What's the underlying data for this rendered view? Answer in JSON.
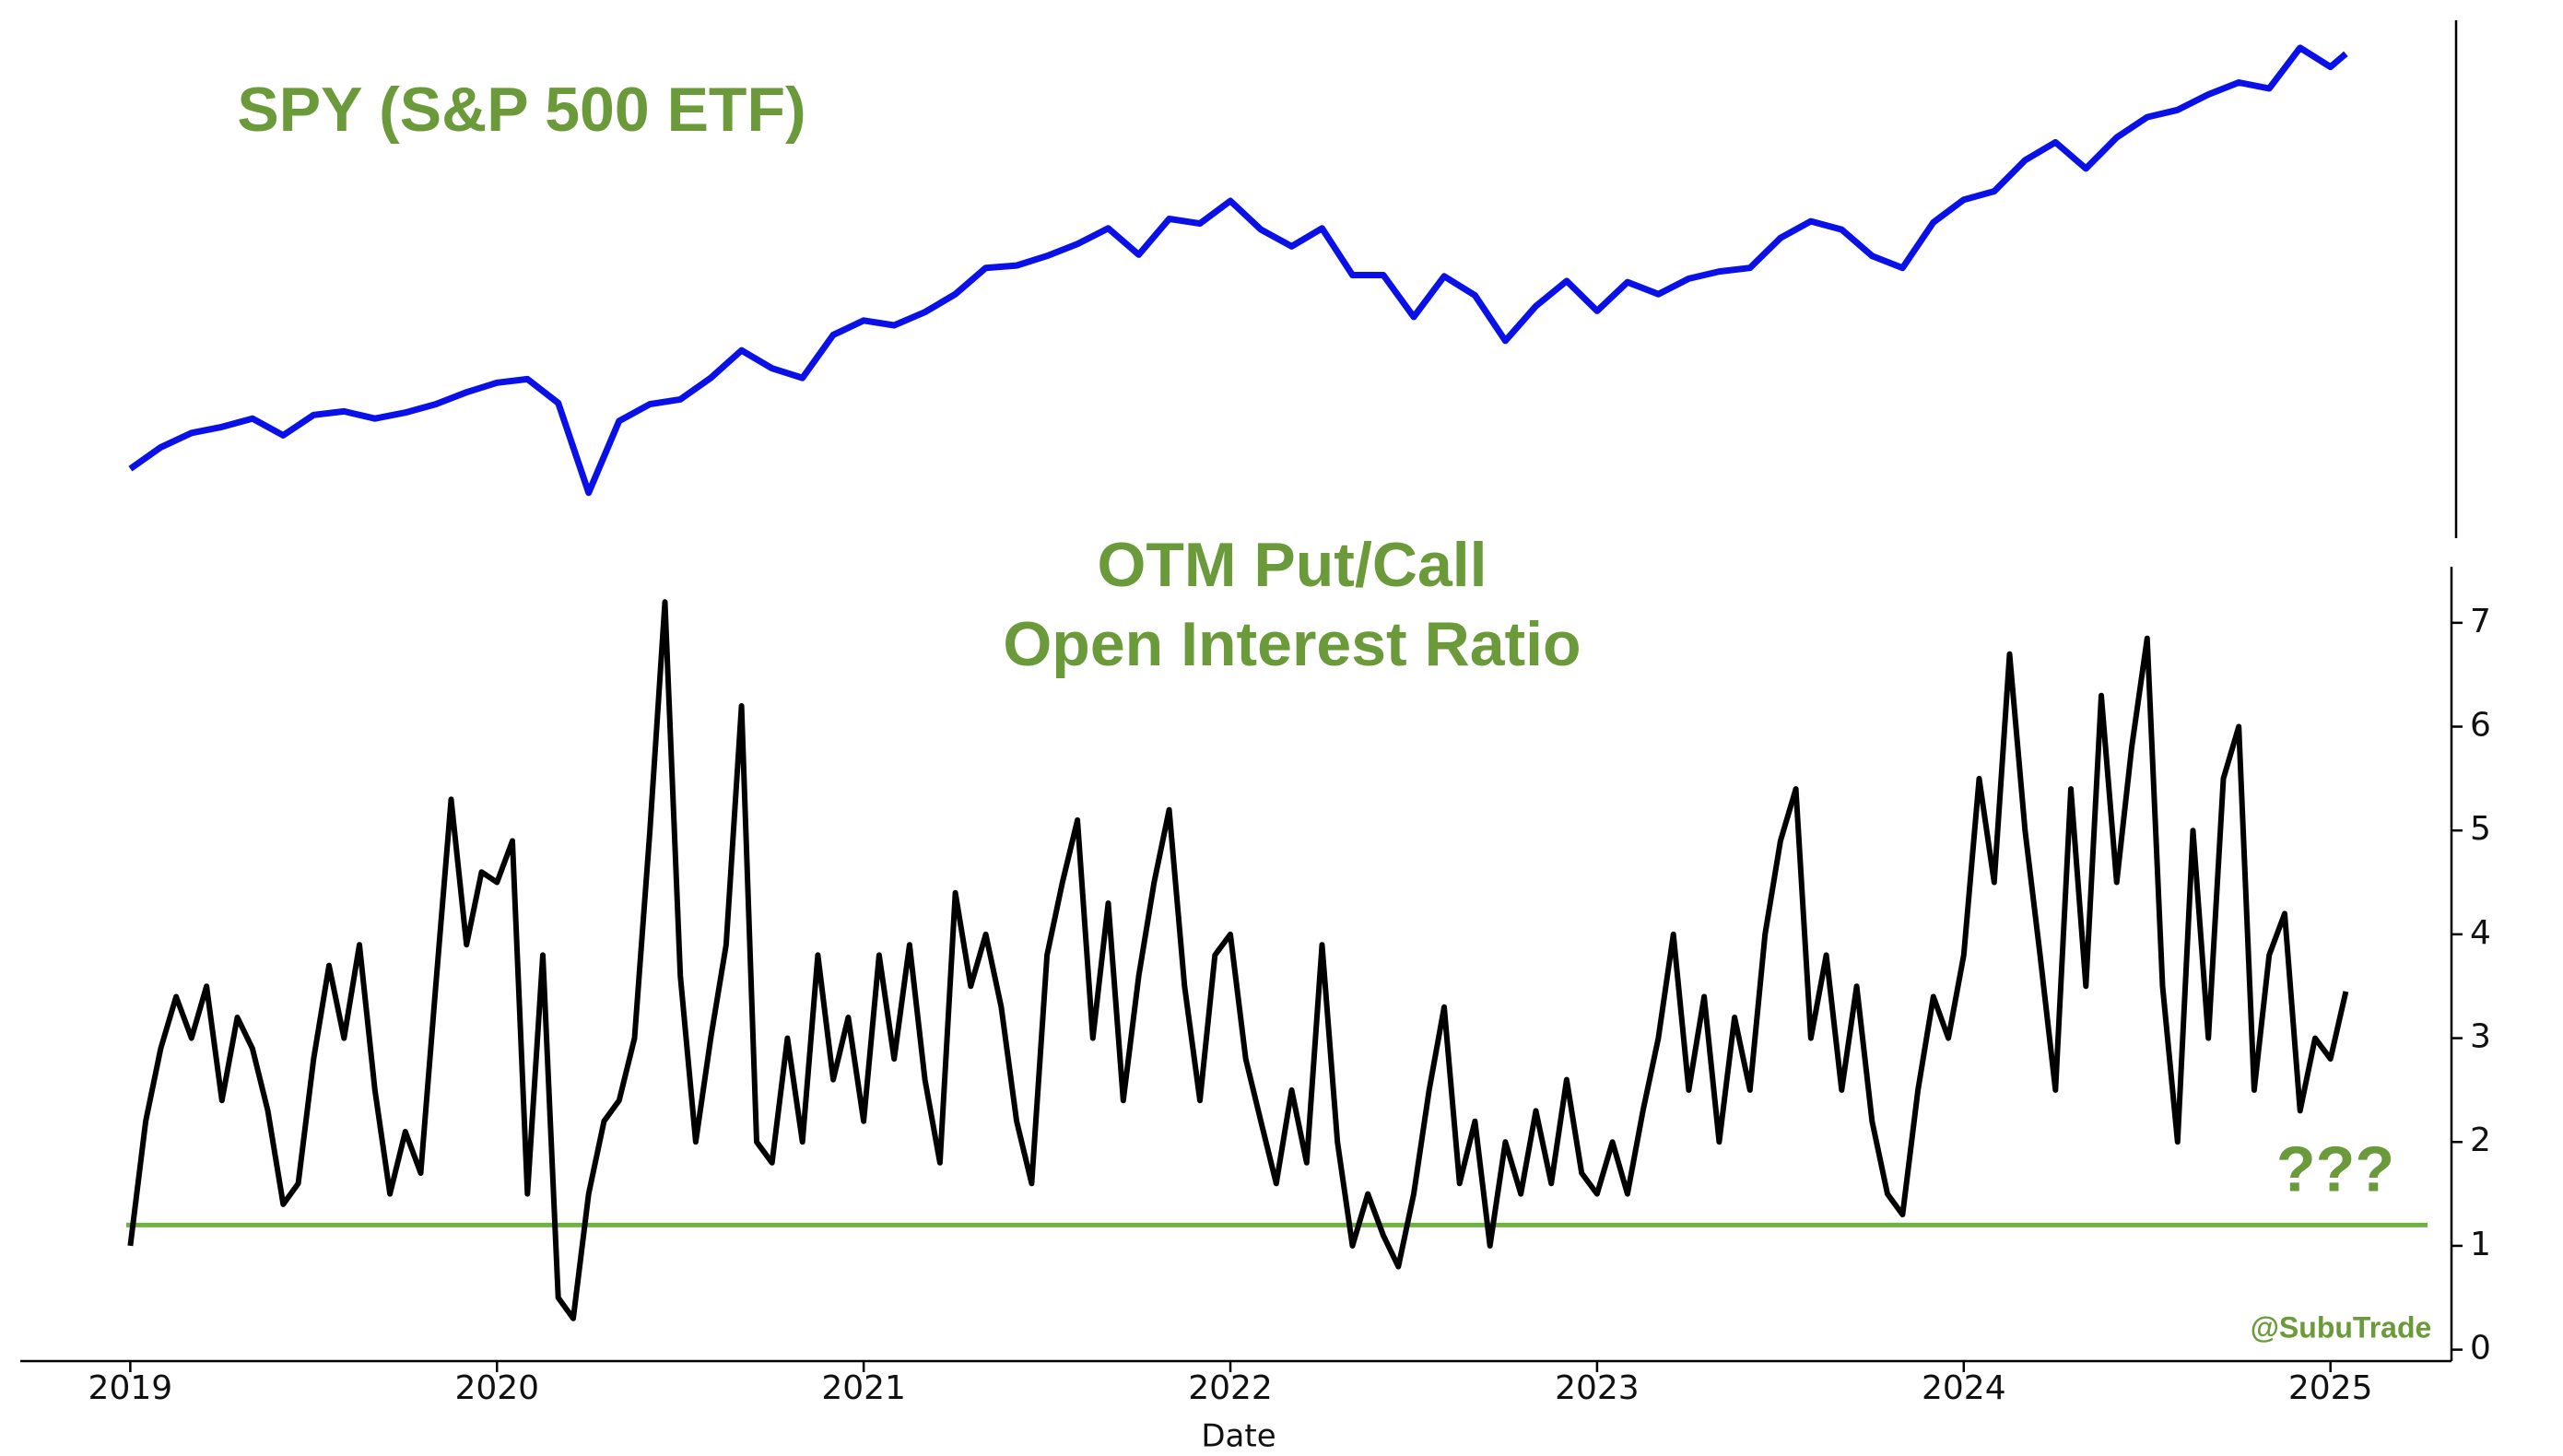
{
  "chart_data": [
    {
      "type": "line",
      "title": "SPY (S&P 500 ETF)",
      "title_color": "#6a9a3a",
      "x": [
        2019.0,
        2019.083,
        2019.167,
        2019.25,
        2019.333,
        2019.417,
        2019.5,
        2019.583,
        2019.667,
        2019.75,
        2019.833,
        2019.917,
        2020.0,
        2020.083,
        2020.167,
        2020.25,
        2020.333,
        2020.417,
        2020.5,
        2020.583,
        2020.667,
        2020.75,
        2020.833,
        2020.917,
        2021.0,
        2021.083,
        2021.167,
        2021.25,
        2021.333,
        2021.417,
        2021.5,
        2021.583,
        2021.667,
        2021.75,
        2021.833,
        2021.917,
        2022.0,
        2022.083,
        2022.167,
        2022.25,
        2022.333,
        2022.417,
        2022.5,
        2022.583,
        2022.667,
        2022.75,
        2022.833,
        2022.917,
        2023.0,
        2023.083,
        2023.167,
        2023.25,
        2023.333,
        2023.417,
        2023.5,
        2023.583,
        2023.667,
        2023.75,
        2023.833,
        2023.917,
        2024.0,
        2024.083,
        2024.167,
        2024.25,
        2024.333,
        2024.417,
        2024.5,
        2024.583,
        2024.667,
        2024.75,
        2024.833,
        2024.917,
        2025.0,
        2025.042
      ],
      "series": [
        {
          "name": "SPY",
          "color": "#0a10e8",
          "values": [
            250,
            268,
            280,
            285,
            292,
            278,
            295,
            298,
            292,
            297,
            304,
            314,
            322,
            325,
            305,
            230,
            290,
            304,
            308,
            326,
            349,
            334,
            326,
            362,
            374,
            370,
            381,
            396,
            418,
            420,
            428,
            438,
            451,
            429,
            459,
            455,
            474,
            450,
            436,
            451,
            412,
            412,
            377,
            411,
            395,
            357,
            386,
            407,
            382,
            406,
            396,
            409,
            415,
            418,
            443,
            457,
            450,
            428,
            418,
            456,
            475,
            482,
            508,
            523,
            501,
            527,
            544,
            550,
            563,
            573,
            568,
            602,
            586,
            597
          ]
        }
      ],
      "xlim": [
        2018.7,
        2025.33
      ],
      "ylim": [
        192,
        625
      ]
    },
    {
      "type": "line",
      "title": [
        "OTM Put/Call",
        "Open Interest Ratio"
      ],
      "title_color": "#6a9a3a",
      "x_label": "Date",
      "x": [
        2019.0,
        2019.042,
        2019.083,
        2019.125,
        2019.167,
        2019.208,
        2019.25,
        2019.292,
        2019.333,
        2019.375,
        2019.417,
        2019.458,
        2019.5,
        2019.542,
        2019.583,
        2019.625,
        2019.667,
        2019.708,
        2019.75,
        2019.792,
        2019.833,
        2019.875,
        2019.917,
        2019.958,
        2020.0,
        2020.042,
        2020.083,
        2020.125,
        2020.167,
        2020.208,
        2020.25,
        2020.292,
        2020.333,
        2020.375,
        2020.417,
        2020.458,
        2020.5,
        2020.542,
        2020.583,
        2020.625,
        2020.667,
        2020.708,
        2020.75,
        2020.792,
        2020.833,
        2020.875,
        2020.917,
        2020.958,
        2021.0,
        2021.042,
        2021.083,
        2021.125,
        2021.167,
        2021.208,
        2021.25,
        2021.292,
        2021.333,
        2021.375,
        2021.417,
        2021.458,
        2021.5,
        2021.542,
        2021.583,
        2021.625,
        2021.667,
        2021.708,
        2021.75,
        2021.792,
        2021.833,
        2021.875,
        2021.917,
        2021.958,
        2022.0,
        2022.042,
        2022.083,
        2022.125,
        2022.167,
        2022.208,
        2022.25,
        2022.292,
        2022.333,
        2022.375,
        2022.417,
        2022.458,
        2022.5,
        2022.542,
        2022.583,
        2022.625,
        2022.667,
        2022.708,
        2022.75,
        2022.792,
        2022.833,
        2022.875,
        2022.917,
        2022.958,
        2023.0,
        2023.042,
        2023.083,
        2023.125,
        2023.167,
        2023.208,
        2023.25,
        2023.292,
        2023.333,
        2023.375,
        2023.417,
        2023.458,
        2023.5,
        2023.542,
        2023.583,
        2023.625,
        2023.667,
        2023.708,
        2023.75,
        2023.792,
        2023.833,
        2023.875,
        2023.917,
        2023.958,
        2024.0,
        2024.042,
        2024.083,
        2024.125,
        2024.167,
        2024.208,
        2024.25,
        2024.292,
        2024.333,
        2024.375,
        2024.417,
        2024.458,
        2024.5,
        2024.542,
        2024.583,
        2024.625,
        2024.667,
        2024.708,
        2024.75,
        2024.792,
        2024.833,
        2024.875,
        2024.917,
        2024.958,
        2025.0,
        2025.042
      ],
      "series": [
        {
          "name": "OTM Put/Call Open Interest Ratio",
          "color": "#000000",
          "values": [
            1.0,
            2.2,
            2.9,
            3.4,
            3.0,
            3.5,
            2.4,
            3.2,
            2.9,
            2.3,
            1.4,
            1.6,
            2.8,
            3.7,
            3.0,
            3.9,
            2.5,
            1.5,
            2.1,
            1.7,
            3.5,
            5.3,
            3.9,
            4.6,
            4.5,
            4.9,
            1.5,
            3.8,
            0.5,
            0.3,
            1.5,
            2.2,
            2.4,
            3.0,
            5.0,
            7.2,
            3.6,
            2.0,
            3.0,
            3.9,
            6.2,
            2.0,
            1.8,
            3.0,
            2.0,
            3.8,
            2.6,
            3.2,
            2.2,
            3.8,
            2.8,
            3.9,
            2.6,
            1.8,
            4.4,
            3.5,
            4.0,
            3.3,
            2.2,
            1.6,
            3.8,
            4.5,
            5.1,
            3.0,
            4.3,
            2.4,
            3.6,
            4.5,
            5.2,
            3.5,
            2.4,
            3.8,
            4.0,
            2.8,
            2.2,
            1.6,
            2.5,
            1.8,
            3.9,
            2.0,
            1.0,
            1.5,
            1.1,
            0.8,
            1.5,
            2.5,
            3.3,
            1.6,
            2.2,
            1.0,
            2.0,
            1.5,
            2.3,
            1.6,
            2.6,
            1.7,
            1.5,
            2.0,
            1.5,
            2.3,
            3.0,
            4.0,
            2.5,
            3.4,
            2.0,
            3.2,
            2.5,
            4.0,
            4.9,
            5.4,
            3.0,
            3.8,
            2.5,
            3.5,
            2.2,
            1.5,
            1.3,
            2.5,
            3.4,
            3.0,
            3.8,
            5.5,
            4.5,
            6.7,
            5.0,
            3.8,
            2.5,
            5.4,
            3.5,
            6.3,
            4.5,
            5.8,
            6.85,
            3.5,
            2.0,
            5.0,
            3.0,
            5.5,
            6.0,
            2.5,
            3.8,
            4.2,
            2.3,
            3.0,
            2.8,
            3.45
          ]
        }
      ],
      "threshold": 1.2,
      "threshold_color": "#6fb33f",
      "annotations": [
        "???",
        "@SubuTrade"
      ],
      "annotation_color": "#6a9a3a",
      "xlim": [
        2018.7,
        2025.33
      ],
      "xticks": [
        2019,
        2020,
        2021,
        2022,
        2023,
        2024,
        2025
      ],
      "ylim": [
        -0.11,
        7.54
      ],
      "yticks": [
        0,
        1,
        2,
        3,
        4,
        5,
        6,
        7
      ]
    }
  ]
}
